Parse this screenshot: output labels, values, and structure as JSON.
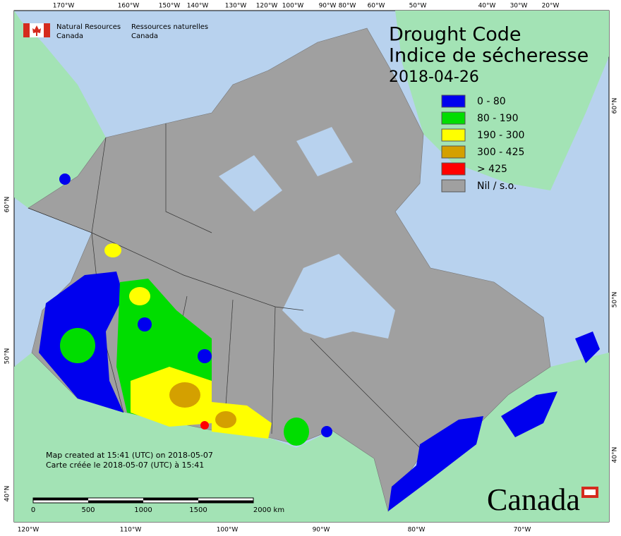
{
  "header": {
    "agency_en": [
      "Natural Resources",
      "Canada"
    ],
    "agency_fr": [
      "Ressources naturelles",
      "Canada"
    ]
  },
  "title": {
    "lines": [
      "Drought Code",
      "Indice de sécheresse"
    ],
    "date": "2018-04-26"
  },
  "legend": {
    "items": [
      {
        "label": "0 - 80",
        "color": "#0000ee"
      },
      {
        "label": "80 - 190",
        "color": "#00dd00"
      },
      {
        "label": "190 - 300",
        "color": "#ffff00"
      },
      {
        "label": "300 - 425",
        "color": "#d4a000"
      },
      {
        "label": "> 425",
        "color": "#ff0000"
      },
      {
        "label": "Nil / s.o.",
        "color": "#a0a0a0"
      }
    ]
  },
  "graticule": {
    "top": [
      "170°W",
      "160°W",
      "150°W",
      "140°W",
      "130°W",
      "120°W",
      "100°W",
      "90°W",
      "80°W",
      "60°W",
      "50°W",
      "40°W",
      "30°W",
      "20°W"
    ],
    "bottom": [
      "120°W",
      "110°W",
      "100°W",
      "90°W",
      "80°W",
      "70°W"
    ],
    "left": [
      "60°N",
      "50°N",
      "40°N"
    ],
    "right": [
      "60°N",
      "50°N",
      "40°N"
    ]
  },
  "footer": [
    "Map created at 15:41 (UTC) on 2018-05-07",
    "Carte créée le 2018-05-07 (UTC) à 15:41"
  ],
  "scale_bar": {
    "labels": [
      "0",
      "500",
      "1000",
      "1500",
      "2000 km"
    ]
  },
  "wordmark": "Canada"
}
